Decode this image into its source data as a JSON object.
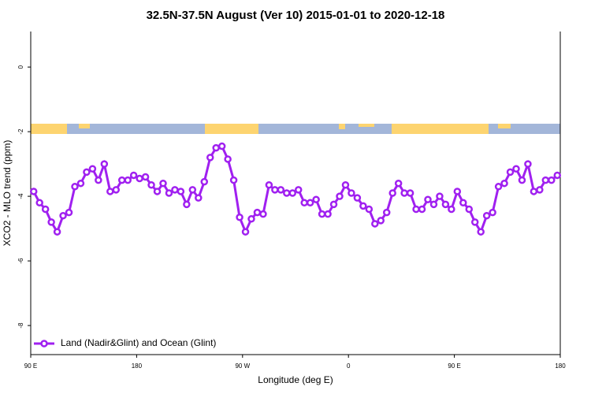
{
  "chart_data": {
    "type": "line",
    "title": "32.5N-37.5N August (Ver 10)   2015-01-01 to 2020-12-18",
    "x_label": "Longitude (deg E)",
    "y_label": "XCO2 - MLO trend (ppm)",
    "xlim": [
      90,
      540
    ],
    "ylim": [
      -8.9,
      1.1
    ],
    "xticks": [
      {
        "value": 90,
        "label": "90 E"
      },
      180,
      {
        "value": 270,
        "label": "90 W"
      },
      {
        "value": 360,
        "label": "0"
      },
      {
        "value": 450,
        "label": "90 E"
      },
      {
        "value": 540,
        "label": "180"
      }
    ],
    "yticks": [
      -8,
      -6,
      -4,
      -2,
      0
    ],
    "legend": "bottom-left",
    "x": [
      92.5,
      97.5,
      102.5,
      107.5,
      112.5,
      117.5,
      122.5,
      127.5,
      132.5,
      137.5,
      142.5,
      147.5,
      152.5,
      157.5,
      162.5,
      167.5,
      172.5,
      177.5,
      182.5,
      187.5,
      192.5,
      197.5,
      202.5,
      207.5,
      212.5,
      217.5,
      222.5,
      227.5,
      232.5,
      237.5,
      242.5,
      247.5,
      252.5,
      257.5,
      262.5,
      267.5,
      272.5,
      277.5,
      282.5,
      287.5,
      292.5,
      297.5,
      302.5,
      307.5,
      312.5,
      317.5,
      322.5,
      327.5,
      332.5,
      337.5,
      342.5,
      347.5,
      352.5,
      357.5,
      362.5,
      367.5,
      372.5,
      377.5,
      382.5,
      387.5,
      392.5,
      397.5,
      402.5,
      407.5,
      412.5,
      417.5,
      422.5,
      427.5,
      432.5,
      437.5,
      442.5,
      447.5,
      452.5,
      457.5,
      462.5,
      467.5,
      472.5,
      477.5,
      482.5,
      487.5,
      492.5,
      497.5,
      502.5,
      507.5,
      512.5,
      517.5,
      522.5,
      527.5,
      532.5,
      537.5
    ],
    "series": [
      {
        "name": "Land (Nadir&Glint) and Ocean (Glint)",
        "color": "#a020f0",
        "values": [
          -3.85,
          -4.2,
          -4.4,
          -4.8,
          -5.1,
          -4.6,
          -4.5,
          -3.7,
          -3.6,
          -3.25,
          -3.15,
          -3.5,
          -3.0,
          -3.85,
          -3.8,
          -3.5,
          -3.5,
          -3.35,
          -3.45,
          -3.4,
          -3.65,
          -3.85,
          -3.6,
          -3.9,
          -3.8,
          -3.85,
          -4.25,
          -3.8,
          -4.05,
          -3.55,
          -2.8,
          -2.5,
          -2.45,
          -2.85,
          -3.5,
          -4.65,
          -5.1,
          -4.7,
          -4.5,
          -4.55,
          -3.65,
          -3.8,
          -3.8,
          -3.9,
          -3.9,
          -3.8,
          -4.2,
          -4.2,
          -4.1,
          -4.55,
          -4.55,
          -4.25,
          -4.0,
          -3.65,
          -3.9,
          -4.05,
          -4.3,
          -4.4,
          -4.85,
          -4.75,
          -4.5,
          -3.9,
          -3.6,
          -3.9,
          -3.9,
          -4.4,
          -4.4,
          -4.1,
          -4.25,
          -4.0,
          -4.25,
          -4.4,
          -3.85,
          -4.2,
          -4.4,
          -4.8,
          -5.1,
          -4.6,
          -4.5,
          -3.7,
          -3.6,
          -3.25,
          -3.15,
          -3.5,
          -3.0,
          -3.85,
          -3.8,
          -3.5,
          -3.5,
          -3.35
        ]
      }
    ]
  }
}
